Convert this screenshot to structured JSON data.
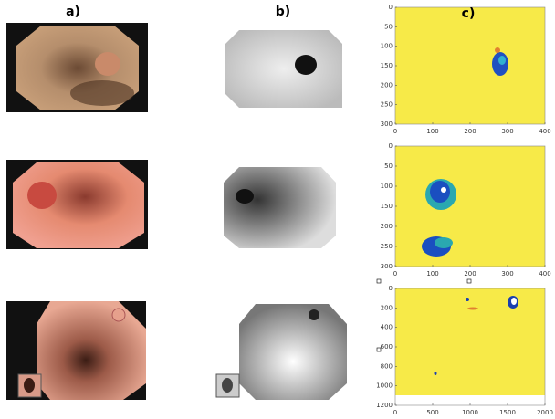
{
  "labels": [
    "a)",
    "b)",
    "c)"
  ],
  "plots": [
    {
      "xlim": [
        0,
        400
      ],
      "ylim": [
        0,
        300
      ],
      "xticks": [
        0,
        100,
        200,
        300,
        400
      ],
      "yticks": [
        0,
        50,
        100,
        150,
        200,
        250,
        300
      ]
    },
    {
      "xlim": [
        0,
        400
      ],
      "ylim": [
        0,
        300
      ],
      "xticks": [
        0,
        100,
        200,
        300,
        400
      ],
      "yticks": [
        0,
        50,
        100,
        150,
        200,
        250,
        300
      ]
    },
    {
      "xlim": [
        0,
        2000
      ],
      "ylim": [
        0,
        1200
      ],
      "xticks": [
        0,
        500,
        1000,
        1500,
        2000
      ],
      "yticks": [
        0,
        200,
        400,
        600,
        800,
        1000,
        1200
      ]
    }
  ]
}
